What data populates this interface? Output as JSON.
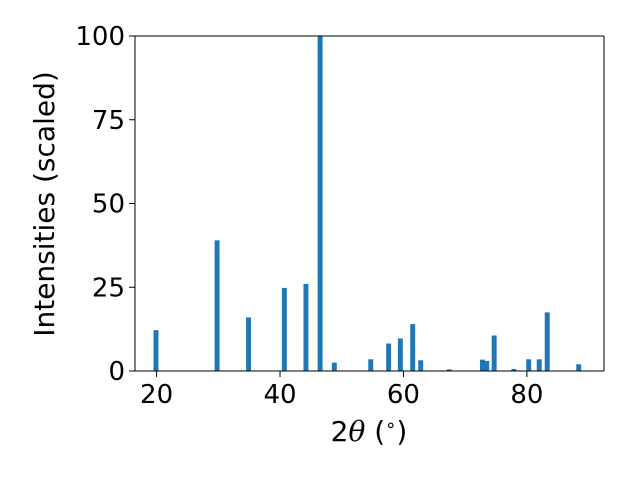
{
  "chart_data": {
    "type": "bar",
    "xlabel": {
      "prefix": "2",
      "symbol": "θ",
      "suffix": " (",
      "unit": "∘",
      "close": ")"
    },
    "ylabel": "Intensities (scaled)",
    "xlim": [
      16.5,
      92.5
    ],
    "ylim": [
      0,
      100
    ],
    "xticks": [
      20,
      40,
      60,
      80
    ],
    "yticks": [
      0,
      25,
      50,
      75,
      100
    ],
    "bar_width": 0.8,
    "color": "#1f77b4",
    "grid": false,
    "legend": "none",
    "x": [
      19.9,
      29.8,
      34.9,
      40.7,
      44.2,
      46.5,
      48.8,
      54.7,
      57.6,
      59.5,
      61.5,
      62.8,
      67.4,
      72.8,
      73.5,
      74.7,
      77.9,
      80.3,
      82.0,
      83.3,
      88.4
    ],
    "values": [
      12.2,
      39.0,
      16.0,
      24.8,
      26.0,
      100.0,
      2.5,
      3.5,
      8.2,
      9.7,
      14.0,
      3.2,
      0.5,
      3.4,
      3.0,
      10.6,
      0.6,
      3.5,
      3.5,
      17.5,
      2.0
    ]
  }
}
